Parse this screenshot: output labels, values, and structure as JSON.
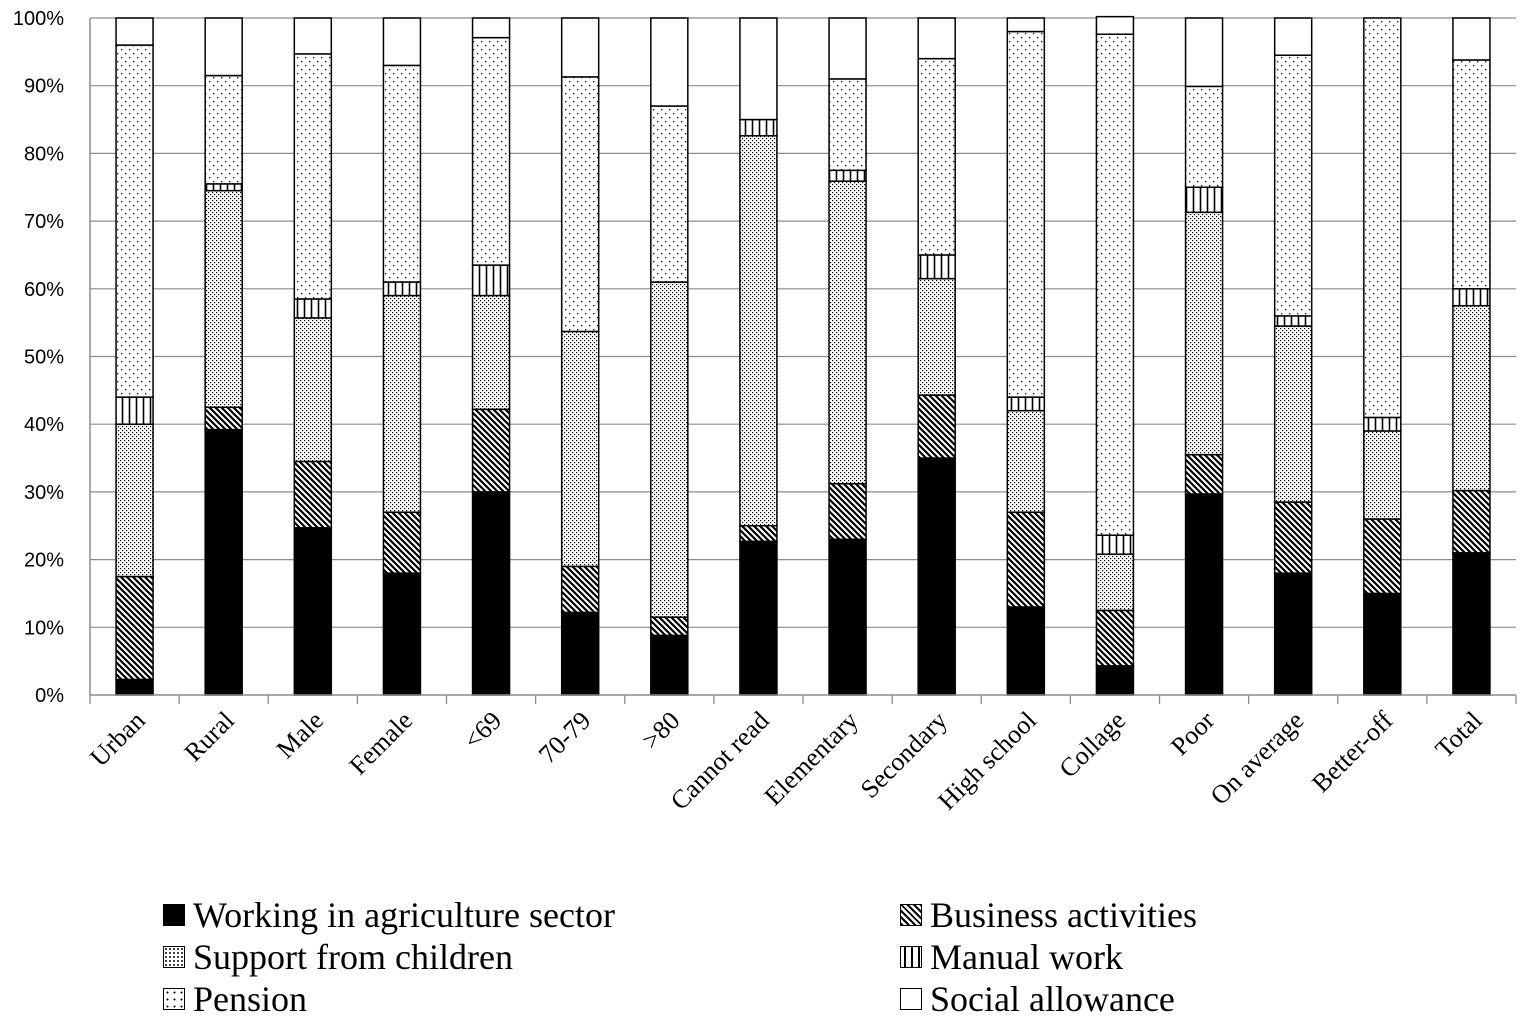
{
  "chart_data": {
    "type": "bar",
    "stacked": true,
    "normalized": true,
    "categories": [
      "Urban",
      "Rural",
      "Male",
      "Female",
      "<69",
      "70-79",
      ">80",
      "Cannot read",
      "Elementary",
      "Secondary",
      "High school",
      "Collage",
      "Poor",
      "On average",
      "Better-off",
      "Total"
    ],
    "y_ticks": [
      "0%",
      "10%",
      "20%",
      "30%",
      "40%",
      "50%",
      "60%",
      "70%",
      "80%",
      "90%",
      "100%"
    ],
    "ylim": [
      0,
      100
    ],
    "grid": true,
    "legend_position": "bottom",
    "series": [
      {
        "name": "Working in agriculture sector",
        "pattern": "solid",
        "values": [
          2.3,
          39.2,
          24.7,
          18.0,
          30.0,
          12.2,
          8.8,
          22.7,
          23.0,
          35.0,
          13.0,
          4.3,
          29.7,
          18.0,
          15.0,
          21.0
        ]
      },
      {
        "name": "Business activities",
        "pattern": "diagonal",
        "values": [
          15.2,
          3.3,
          9.8,
          9.0,
          12.2,
          6.8,
          2.7,
          2.3,
          8.2,
          9.3,
          14.0,
          8.2,
          5.8,
          10.5,
          11.0,
          9.2
        ]
      },
      {
        "name": "Support from children",
        "pattern": "dense-dots",
        "values": [
          22.5,
          32.0,
          21.2,
          32.0,
          16.8,
          34.7,
          49.5,
          57.6,
          44.7,
          17.2,
          15.0,
          8.3,
          35.8,
          26.0,
          13.0,
          27.3
        ]
      },
      {
        "name": "Manual work",
        "pattern": "vertical",
        "values": [
          4.0,
          1.0,
          2.8,
          2.0,
          4.5,
          0.0,
          0.0,
          2.4,
          1.6,
          3.5,
          2.0,
          2.8,
          3.7,
          1.5,
          2.0,
          2.5
        ]
      },
      {
        "name": "Pension",
        "pattern": "sparse-dots",
        "values": [
          52.0,
          16.0,
          36.2,
          32.0,
          33.6,
          37.6,
          26.0,
          0.0,
          13.5,
          29.0,
          54.0,
          74.0,
          14.9,
          38.5,
          59.0,
          33.8
        ]
      },
      {
        "name": "Social allowance",
        "pattern": "empty",
        "values": [
          4.0,
          8.5,
          5.3,
          7.0,
          2.9,
          8.7,
          13.0,
          15.0,
          9.0,
          6.0,
          2.0,
          2.6,
          10.1,
          5.5,
          0.0,
          6.2
        ]
      }
    ],
    "colors": {
      "ink": "#000000",
      "grid": "#8c8c8c",
      "background": "#ffffff"
    }
  }
}
